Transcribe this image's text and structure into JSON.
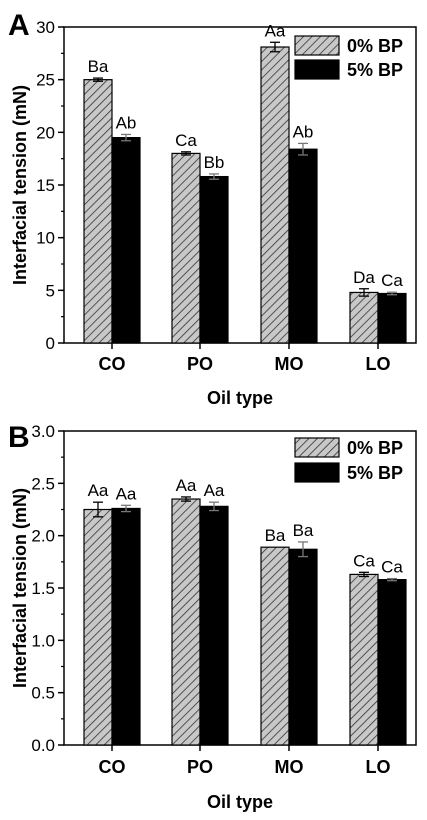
{
  "chart_data": [
    {
      "panel": "A",
      "type": "bar",
      "xlabel": "Oil type",
      "ylabel": "Interfacial tension (mN)",
      "ylim": [
        0,
        30
      ],
      "yticks": [
        0,
        5,
        10,
        15,
        20,
        25,
        30
      ],
      "yticklabels": [
        "0",
        "5",
        "10",
        "15",
        "20",
        "25",
        "30"
      ],
      "categories": [
        "CO",
        "PO",
        "MO",
        "LO"
      ],
      "legend_position": "top-right",
      "grid": false,
      "series": [
        {
          "name": "0% BP",
          "pattern": "hatched",
          "color": "#c8c8c8",
          "values": [
            25.0,
            18.0,
            28.1,
            4.8
          ],
          "errors": [
            0.15,
            0.15,
            0.45,
            0.35
          ],
          "labels": [
            "Ba",
            "Ca",
            "Aa",
            "Da"
          ]
        },
        {
          "name": "5% BP",
          "pattern": "solid",
          "color": "#000000",
          "values": [
            19.5,
            15.8,
            18.4,
            4.7
          ],
          "errors": [
            0.3,
            0.25,
            0.55,
            0.12
          ],
          "labels": [
            "Ab",
            "Bb",
            "Ab",
            "Ca"
          ]
        }
      ]
    },
    {
      "panel": "B",
      "type": "bar",
      "xlabel": "Oil type",
      "ylabel": "Interfacial tension (mN)",
      "ylim": [
        0,
        3.0
      ],
      "yticks": [
        0,
        0.5,
        1.0,
        1.5,
        2.0,
        2.5,
        3.0
      ],
      "yticklabels": [
        "0.0",
        "0.5",
        "1.0",
        "1.5",
        "2.0",
        "2.5",
        "3.0"
      ],
      "categories": [
        "CO",
        "PO",
        "MO",
        "LO"
      ],
      "legend_position": "top-right",
      "grid": false,
      "series": [
        {
          "name": "0% BP",
          "pattern": "hatched",
          "color": "#c8c8c8",
          "values": [
            2.25,
            2.35,
            1.89,
            1.63
          ],
          "errors": [
            0.07,
            0.02,
            0.0,
            0.02
          ],
          "labels": [
            "Aa",
            "Aa",
            "Ba",
            "Ca"
          ]
        },
        {
          "name": "5% BP",
          "pattern": "solid",
          "color": "#000000",
          "values": [
            2.26,
            2.28,
            1.87,
            1.58
          ],
          "errors": [
            0.03,
            0.04,
            0.07,
            0.01
          ],
          "labels": [
            "Aa",
            "Aa",
            "Ba",
            "Ca"
          ]
        }
      ]
    }
  ]
}
